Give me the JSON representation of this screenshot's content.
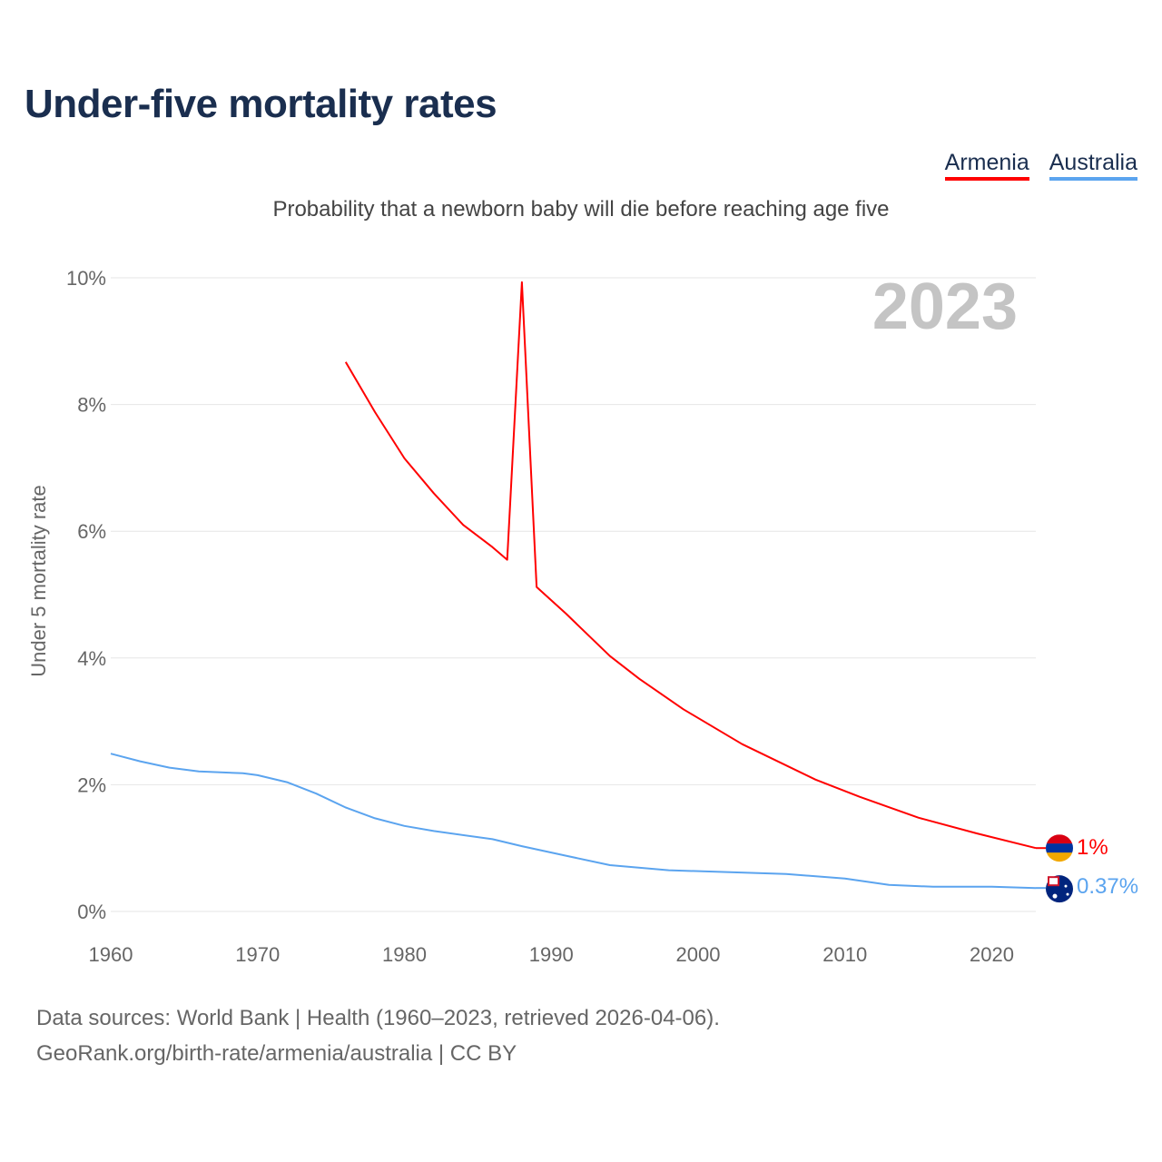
{
  "chart_data": {
    "type": "line",
    "title": "Under-five mortality rates",
    "subtitle": "Probability that a newborn baby will die before reaching age five",
    "ylabel": "Under 5 mortality rate",
    "xlabel": "",
    "year_label": "2023",
    "xlim": [
      1960,
      2023
    ],
    "ylim": [
      0,
      10
    ],
    "x_ticks": [
      "1960",
      "1970",
      "1980",
      "1990",
      "2000",
      "2010",
      "2020"
    ],
    "y_ticks": [
      "0%",
      "2%",
      "4%",
      "6%",
      "8%",
      "10%"
    ],
    "grid": true,
    "legend_position": "top-right",
    "series": [
      {
        "name": "Armenia",
        "color": "#ff0000",
        "end_label": "1%",
        "x": [
          1976,
          1978,
          1980,
          1982,
          1984,
          1986,
          1987,
          1988,
          1989,
          1991,
          1994,
          1996,
          1999,
          2003,
          2008,
          2011,
          2015,
          2019,
          2023
        ],
        "y": [
          8.67,
          7.88,
          7.15,
          6.6,
          6.1,
          5.75,
          5.55,
          9.93,
          5.12,
          4.7,
          4.03,
          3.67,
          3.19,
          2.64,
          2.08,
          1.81,
          1.48,
          1.23,
          1.0
        ]
      },
      {
        "name": "Australia",
        "color": "#5ba4ef",
        "end_label": "0.37%",
        "x": [
          1960,
          1962,
          1964,
          1966,
          1969,
          1970,
          1972,
          1974,
          1976,
          1978,
          1980,
          1982,
          1986,
          1988,
          1991,
          1994,
          1998,
          2006,
          2010,
          2013,
          2016,
          2020,
          2023
        ],
        "y": [
          2.49,
          2.37,
          2.27,
          2.21,
          2.18,
          2.15,
          2.04,
          1.86,
          1.64,
          1.47,
          1.35,
          1.27,
          1.14,
          1.03,
          0.88,
          0.73,
          0.65,
          0.59,
          0.52,
          0.42,
          0.39,
          0.39,
          0.37
        ]
      }
    ]
  },
  "footer": {
    "line1": "Data sources: World Bank | Health (1960–2023, retrieved 2026-04-06).",
    "line2": "GeoRank.org/birth-rate/armenia/australia | CC BY"
  }
}
